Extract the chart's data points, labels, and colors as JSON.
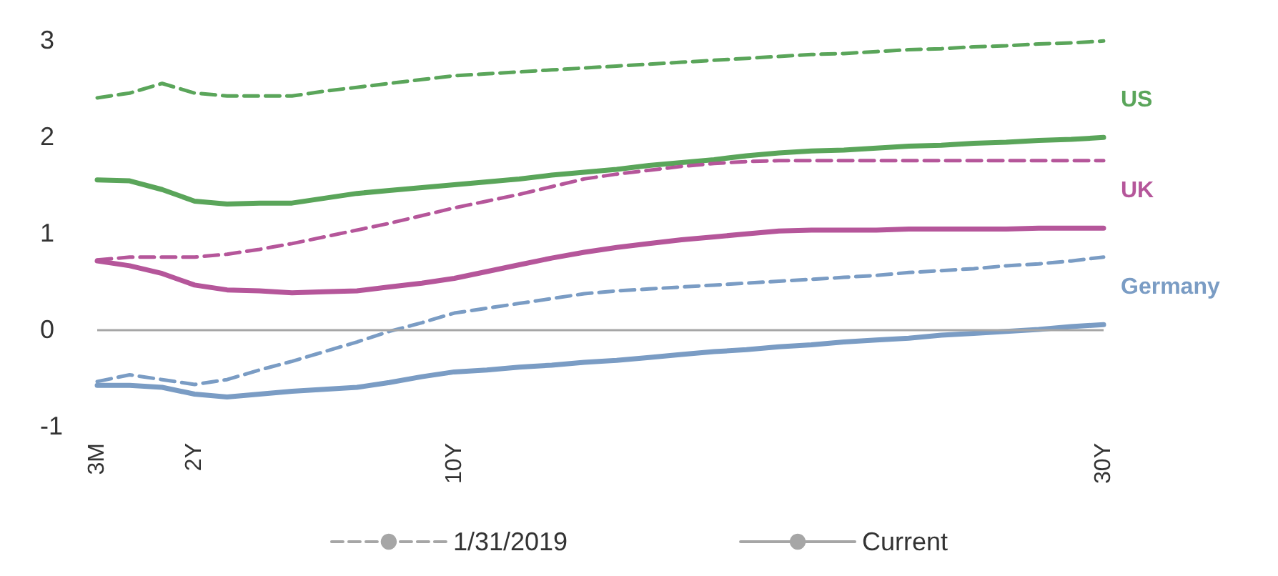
{
  "chart_data": {
    "type": "line",
    "categories": [
      "3M",
      null,
      null,
      "2Y",
      null,
      null,
      null,
      null,
      null,
      null,
      null,
      "10Y",
      null,
      null,
      null,
      null,
      null,
      null,
      null,
      null,
      null,
      null,
      null,
      null,
      null,
      null,
      null,
      null,
      null,
      null,
      null,
      "30Y"
    ],
    "ylim": [
      -1,
      3
    ],
    "yticks": [
      -1,
      0,
      1,
      2,
      3
    ],
    "grid": false,
    "legend": "bottom",
    "marker": "none",
    "ref_lines": [
      {
        "axis": "y",
        "value": 0,
        "color": "#a6a6a6"
      }
    ],
    "series": [
      {
        "color": "#5aa55a",
        "line_style": "dashed",
        "values": [
          2.4,
          2.45,
          2.55,
          2.45,
          2.42,
          2.42,
          2.42,
          2.47,
          2.51,
          2.55,
          2.59,
          2.63,
          2.65,
          2.67,
          2.69,
          2.71,
          2.73,
          2.75,
          2.77,
          2.79,
          2.81,
          2.83,
          2.85,
          2.86,
          2.88,
          2.9,
          2.91,
          2.93,
          2.94,
          2.96,
          2.97,
          2.99
        ]
      },
      {
        "name": "US",
        "color": "#5aa55a",
        "line_style": "solid",
        "values": [
          1.55,
          1.54,
          1.45,
          1.33,
          1.3,
          1.31,
          1.31,
          1.36,
          1.41,
          1.44,
          1.47,
          1.5,
          1.53,
          1.56,
          1.6,
          1.63,
          1.66,
          1.7,
          1.73,
          1.76,
          1.8,
          1.83,
          1.85,
          1.86,
          1.88,
          1.9,
          1.91,
          1.93,
          1.94,
          1.96,
          1.97,
          1.99
        ]
      },
      {
        "color": "#b5569a",
        "line_style": "dashed",
        "values": [
          0.72,
          0.75,
          0.75,
          0.75,
          0.78,
          0.83,
          0.89,
          0.96,
          1.03,
          1.1,
          1.18,
          1.26,
          1.33,
          1.4,
          1.48,
          1.56,
          1.61,
          1.65,
          1.69,
          1.72,
          1.74,
          1.75,
          1.75,
          1.75,
          1.75,
          1.75,
          1.75,
          1.75,
          1.75,
          1.75,
          1.75,
          1.75
        ]
      },
      {
        "name": "UK",
        "color": "#b5569a",
        "line_style": "solid",
        "values": [
          0.71,
          0.66,
          0.58,
          0.46,
          0.41,
          0.4,
          0.38,
          0.39,
          0.4,
          0.44,
          0.48,
          0.53,
          0.6,
          0.67,
          0.74,
          0.8,
          0.85,
          0.89,
          0.93,
          0.96,
          0.99,
          1.02,
          1.03,
          1.03,
          1.03,
          1.04,
          1.04,
          1.04,
          1.04,
          1.05,
          1.05,
          1.05
        ]
      },
      {
        "color": "#7a9cc4",
        "line_style": "dashed",
        "values": [
          -0.54,
          -0.47,
          -0.52,
          -0.57,
          -0.52,
          -0.42,
          -0.33,
          -0.23,
          -0.13,
          -0.02,
          0.07,
          0.17,
          0.22,
          0.27,
          0.32,
          0.37,
          0.4,
          0.42,
          0.44,
          0.46,
          0.48,
          0.5,
          0.52,
          0.54,
          0.56,
          0.59,
          0.61,
          0.63,
          0.66,
          0.68,
          0.71,
          0.75
        ]
      },
      {
        "name": "Germany",
        "color": "#7a9cc4",
        "line_style": "solid",
        "values": [
          -0.58,
          -0.58,
          -0.6,
          -0.67,
          -0.7,
          -0.67,
          -0.64,
          -0.62,
          -0.6,
          -0.55,
          -0.49,
          -0.44,
          -0.42,
          -0.39,
          -0.37,
          -0.34,
          -0.32,
          -0.29,
          -0.26,
          -0.23,
          -0.21,
          -0.18,
          -0.16,
          -0.13,
          -0.11,
          -0.09,
          -0.06,
          -0.04,
          -0.02,
          0.0,
          0.03,
          0.05
        ]
      },
      {
        "name": "1/31/2019",
        "color": "#a6a6a6",
        "line_style": "dashed",
        "values": [
          null,
          null,
          null,
          null,
          null,
          null,
          null,
          null,
          null,
          null,
          null,
          null,
          null,
          null,
          null,
          null,
          null,
          null,
          null,
          null,
          null,
          null,
          null,
          null,
          null,
          null,
          null,
          null,
          null,
          null,
          null,
          null
        ]
      },
      {
        "name": "Current",
        "color": "#a6a6a6",
        "line_style": "solid",
        "values": [
          null,
          null,
          null,
          null,
          null,
          null,
          null,
          null,
          null,
          null,
          null,
          null,
          null,
          null,
          null,
          null,
          null,
          null,
          null,
          null,
          null,
          null,
          null,
          null,
          null,
          null,
          null,
          null,
          null,
          null,
          null,
          null
        ]
      }
    ]
  }
}
